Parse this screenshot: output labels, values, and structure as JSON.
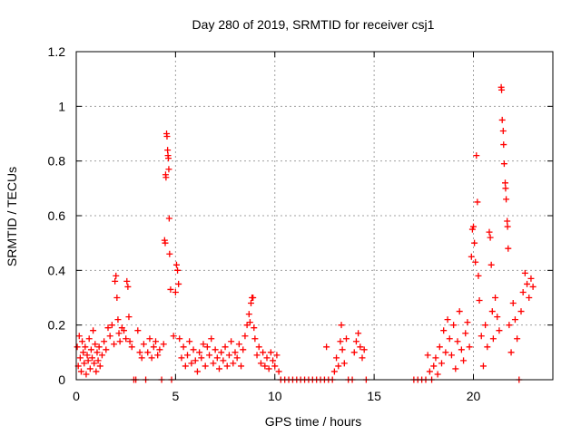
{
  "chart_data": {
    "type": "scatter",
    "title": "Day 280 of 2019, SRMTID for receiver csj1",
    "xlabel": "GPS time / hours",
    "ylabel": "SRMTID / TECUs",
    "xlim": [
      0,
      24
    ],
    "ylim": [
      0,
      1.2
    ],
    "xticks": [
      0,
      5,
      10,
      15,
      20
    ],
    "xtick_labels": [
      "0",
      "5",
      "10",
      "15",
      "20"
    ],
    "yticks": [
      0,
      0.2,
      0.4,
      0.6,
      0.8,
      1,
      1.2
    ],
    "ytick_labels": [
      "0",
      "0.2",
      "0.4",
      "0.6",
      "0.8",
      "1",
      "1.2"
    ],
    "grid": true,
    "marker": "+",
    "series": [
      {
        "name": "SRMTID",
        "color": "#ff0000",
        "points": [
          [
            0.05,
            0.12
          ],
          [
            0.1,
            0.05
          ],
          [
            0.15,
            0.16
          ],
          [
            0.2,
            0.08
          ],
          [
            0.25,
            0.03
          ],
          [
            0.3,
            0.14
          ],
          [
            0.35,
            0.1
          ],
          [
            0.4,
            0.06
          ],
          [
            0.45,
            0.12
          ],
          [
            0.5,
            0.02
          ],
          [
            0.55,
            0.09
          ],
          [
            0.6,
            0.07
          ],
          [
            0.65,
            0.15
          ],
          [
            0.7,
            0.04
          ],
          [
            0.75,
            0.11
          ],
          [
            0.8,
            0.08
          ],
          [
            0.85,
            0.18
          ],
          [
            0.9,
            0.06
          ],
          [
            0.95,
            0.13
          ],
          [
            1.0,
            0.03
          ],
          [
            1.05,
            0.1
          ],
          [
            1.1,
            0.07
          ],
          [
            1.15,
            0.12
          ],
          [
            1.2,
            0.05
          ],
          [
            1.3,
            0.09
          ],
          [
            1.4,
            0.14
          ],
          [
            1.5,
            0.11
          ],
          [
            1.6,
            0.19
          ],
          [
            1.7,
            0.16
          ],
          [
            1.8,
            0.2
          ],
          [
            1.9,
            0.13
          ],
          [
            1.95,
            0.36
          ],
          [
            2.0,
            0.38
          ],
          [
            2.05,
            0.3
          ],
          [
            2.1,
            0.22
          ],
          [
            2.15,
            0.17
          ],
          [
            2.2,
            0.14
          ],
          [
            2.3,
            0.19
          ],
          [
            2.4,
            0.18
          ],
          [
            2.5,
            0.15
          ],
          [
            2.55,
            0.36
          ],
          [
            2.6,
            0.34
          ],
          [
            2.65,
            0.23
          ],
          [
            2.7,
            0.14
          ],
          [
            2.8,
            0.12
          ],
          [
            2.9,
            0.0
          ],
          [
            3.0,
            0.0
          ],
          [
            3.1,
            0.18
          ],
          [
            3.2,
            0.1
          ],
          [
            3.3,
            0.08
          ],
          [
            3.4,
            0.13
          ],
          [
            3.5,
            0.0
          ],
          [
            3.6,
            0.1
          ],
          [
            3.7,
            0.15
          ],
          [
            3.8,
            0.08
          ],
          [
            3.9,
            0.12
          ],
          [
            4.0,
            0.14
          ],
          [
            4.1,
            0.09
          ],
          [
            4.2,
            0.11
          ],
          [
            4.3,
            0.0
          ],
          [
            4.4,
            0.13
          ],
          [
            4.45,
            0.51
          ],
          [
            4.48,
            0.5
          ],
          [
            4.5,
            0.75
          ],
          [
            4.52,
            0.74
          ],
          [
            4.55,
            0.9
          ],
          [
            4.57,
            0.89
          ],
          [
            4.6,
            0.84
          ],
          [
            4.62,
            0.82
          ],
          [
            4.64,
            0.81
          ],
          [
            4.66,
            0.77
          ],
          [
            4.68,
            0.59
          ],
          [
            4.7,
            0.46
          ],
          [
            4.75,
            0.33
          ],
          [
            4.8,
            0.0
          ],
          [
            4.9,
            0.16
          ],
          [
            5.0,
            0.32
          ],
          [
            5.05,
            0.42
          ],
          [
            5.1,
            0.4
          ],
          [
            5.15,
            0.35
          ],
          [
            5.2,
            0.15
          ],
          [
            5.3,
            0.08
          ],
          [
            5.4,
            0.12
          ],
          [
            5.5,
            0.05
          ],
          [
            5.6,
            0.09
          ],
          [
            5.7,
            0.14
          ],
          [
            5.8,
            0.06
          ],
          [
            5.9,
            0.11
          ],
          [
            6.0,
            0.07
          ],
          [
            6.1,
            0.03
          ],
          [
            6.2,
            0.1
          ],
          [
            6.3,
            0.08
          ],
          [
            6.4,
            0.13
          ],
          [
            6.5,
            0.05
          ],
          [
            6.6,
            0.12
          ],
          [
            6.7,
            0.09
          ],
          [
            6.8,
            0.15
          ],
          [
            6.9,
            0.06
          ],
          [
            7.0,
            0.11
          ],
          [
            7.1,
            0.08
          ],
          [
            7.2,
            0.04
          ],
          [
            7.3,
            0.1
          ],
          [
            7.4,
            0.07
          ],
          [
            7.5,
            0.12
          ],
          [
            7.6,
            0.05
          ],
          [
            7.7,
            0.09
          ],
          [
            7.8,
            0.14
          ],
          [
            7.9,
            0.06
          ],
          [
            8.0,
            0.1
          ],
          [
            8.1,
            0.08
          ],
          [
            8.2,
            0.13
          ],
          [
            8.3,
            0.05
          ],
          [
            8.4,
            0.11
          ],
          [
            8.5,
            0.16
          ],
          [
            8.6,
            0.2
          ],
          [
            8.7,
            0.24
          ],
          [
            8.75,
            0.21
          ],
          [
            8.8,
            0.28
          ],
          [
            8.85,
            0.3
          ],
          [
            8.9,
            0.3
          ],
          [
            8.95,
            0.19
          ],
          [
            9.0,
            0.15
          ],
          [
            9.1,
            0.09
          ],
          [
            9.2,
            0.12
          ],
          [
            9.3,
            0.06
          ],
          [
            9.4,
            0.1
          ],
          [
            9.5,
            0.05
          ],
          [
            9.6,
            0.08
          ],
          [
            9.7,
            0.04
          ],
          [
            9.8,
            0.1
          ],
          [
            9.9,
            0.07
          ],
          [
            10.0,
            0.05
          ],
          [
            10.1,
            0.09
          ],
          [
            10.2,
            0.03
          ],
          [
            10.3,
            0.0
          ],
          [
            10.5,
            0.0
          ],
          [
            10.7,
            0.0
          ],
          [
            10.9,
            0.0
          ],
          [
            11.1,
            0.0
          ],
          [
            11.3,
            0.0
          ],
          [
            11.5,
            0.0
          ],
          [
            11.7,
            0.0
          ],
          [
            11.9,
            0.0
          ],
          [
            12.1,
            0.0
          ],
          [
            12.3,
            0.0
          ],
          [
            12.5,
            0.0
          ],
          [
            12.6,
            0.12
          ],
          [
            12.7,
            0.0
          ],
          [
            12.9,
            0.0
          ],
          [
            13.0,
            0.03
          ],
          [
            13.1,
            0.08
          ],
          [
            13.2,
            0.05
          ],
          [
            13.3,
            0.14
          ],
          [
            13.35,
            0.2
          ],
          [
            13.4,
            0.11
          ],
          [
            13.5,
            0.06
          ],
          [
            13.6,
            0.15
          ],
          [
            13.7,
            0.0
          ],
          [
            13.9,
            0.0
          ],
          [
            14.0,
            0.1
          ],
          [
            14.1,
            0.14
          ],
          [
            14.2,
            0.17
          ],
          [
            14.3,
            0.12
          ],
          [
            14.4,
            0.08
          ],
          [
            14.5,
            0.11
          ],
          [
            14.6,
            0.0
          ],
          [
            17.0,
            0.0
          ],
          [
            17.2,
            0.0
          ],
          [
            17.4,
            0.0
          ],
          [
            17.6,
            0.0
          ],
          [
            17.7,
            0.09
          ],
          [
            17.8,
            0.03
          ],
          [
            17.9,
            0.0
          ],
          [
            18.0,
            0.05
          ],
          [
            18.1,
            0.08
          ],
          [
            18.2,
            0.02
          ],
          [
            18.3,
            0.12
          ],
          [
            18.4,
            0.06
          ],
          [
            18.5,
            0.18
          ],
          [
            18.6,
            0.1
          ],
          [
            18.7,
            0.22
          ],
          [
            18.8,
            0.15
          ],
          [
            18.9,
            0.09
          ],
          [
            19.0,
            0.2
          ],
          [
            19.1,
            0.04
          ],
          [
            19.2,
            0.14
          ],
          [
            19.3,
            0.25
          ],
          [
            19.4,
            0.11
          ],
          [
            19.5,
            0.07
          ],
          [
            19.6,
            0.17
          ],
          [
            19.7,
            0.21
          ],
          [
            19.8,
            0.12
          ],
          [
            19.9,
            0.45
          ],
          [
            19.95,
            0.55
          ],
          [
            20.0,
            0.56
          ],
          [
            20.05,
            0.5
          ],
          [
            20.1,
            0.43
          ],
          [
            20.15,
            0.82
          ],
          [
            20.2,
            0.65
          ],
          [
            20.25,
            0.38
          ],
          [
            20.3,
            0.29
          ],
          [
            20.4,
            0.16
          ],
          [
            20.5,
            0.05
          ],
          [
            20.6,
            0.2
          ],
          [
            20.7,
            0.12
          ],
          [
            20.8,
            0.54
          ],
          [
            20.85,
            0.52
          ],
          [
            20.9,
            0.42
          ],
          [
            20.95,
            0.25
          ],
          [
            21.0,
            0.15
          ],
          [
            21.1,
            0.3
          ],
          [
            21.2,
            0.23
          ],
          [
            21.3,
            0.18
          ],
          [
            21.4,
            1.07
          ],
          [
            21.42,
            1.06
          ],
          [
            21.45,
            0.95
          ],
          [
            21.5,
            0.91
          ],
          [
            21.52,
            0.86
          ],
          [
            21.55,
            0.79
          ],
          [
            21.6,
            0.72
          ],
          [
            21.62,
            0.7
          ],
          [
            21.65,
            0.66
          ],
          [
            21.7,
            0.58
          ],
          [
            21.72,
            0.56
          ],
          [
            21.75,
            0.48
          ],
          [
            21.8,
            0.2
          ],
          [
            21.9,
            0.1
          ],
          [
            22.0,
            0.28
          ],
          [
            22.1,
            0.22
          ],
          [
            22.2,
            0.15
          ],
          [
            22.3,
            0.0
          ],
          [
            22.4,
            0.25
          ],
          [
            22.5,
            0.32
          ],
          [
            22.6,
            0.39
          ],
          [
            22.7,
            0.35
          ],
          [
            22.8,
            0.3
          ],
          [
            22.9,
            0.37
          ],
          [
            23.0,
            0.34
          ]
        ]
      }
    ]
  }
}
